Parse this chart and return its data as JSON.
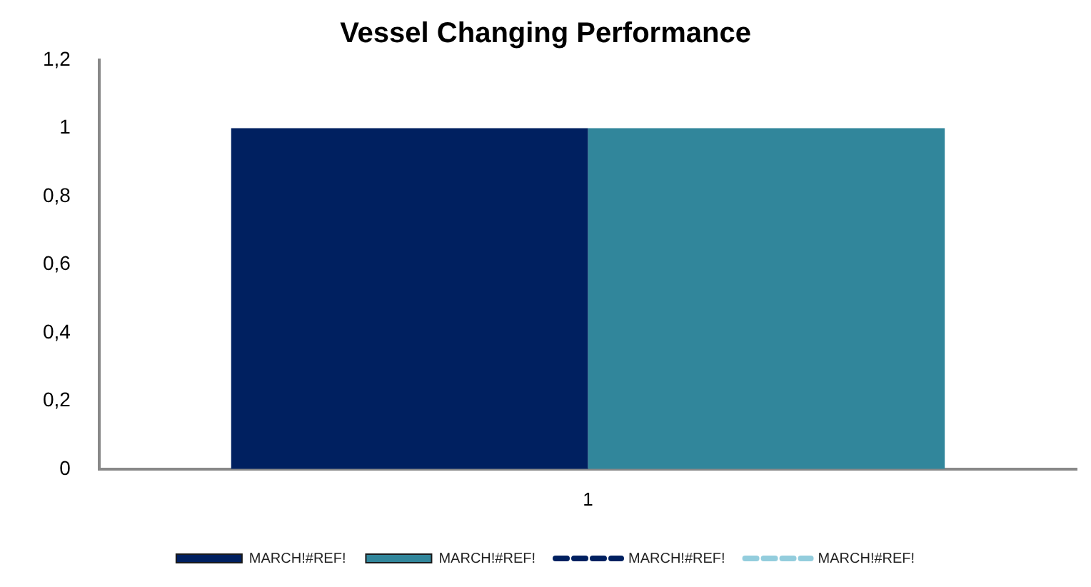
{
  "chart_data": {
    "type": "bar",
    "title": "Vessel Changing Performance",
    "categories": [
      "1"
    ],
    "series": [
      {
        "name": "MARCH!#REF!",
        "color": "#002060",
        "values": [
          1
        ]
      },
      {
        "name": "MARCH!#REF!",
        "color": "#31869b",
        "values": [
          1
        ]
      },
      {
        "name": "MARCH!#REF!",
        "color": "#002060",
        "type": "line",
        "line_style": "dashed",
        "values": [
          null
        ]
      },
      {
        "name": "MARCH!#REF!",
        "color": "#93cddd",
        "type": "line",
        "line_style": "dashed",
        "values": [
          null
        ]
      }
    ],
    "ylim": [
      0,
      1.2
    ],
    "yticks": [
      0,
      {
        "value": 0.2,
        "label": "0,2"
      },
      {
        "value": 0.4,
        "label": "0,4"
      },
      {
        "value": 0.6,
        "label": "0,6"
      },
      {
        "value": 0.8,
        "label": "0,8"
      },
      1,
      {
        "value": 1.2,
        "label": "1,2"
      }
    ],
    "grid": false,
    "legend": "bottom"
  }
}
